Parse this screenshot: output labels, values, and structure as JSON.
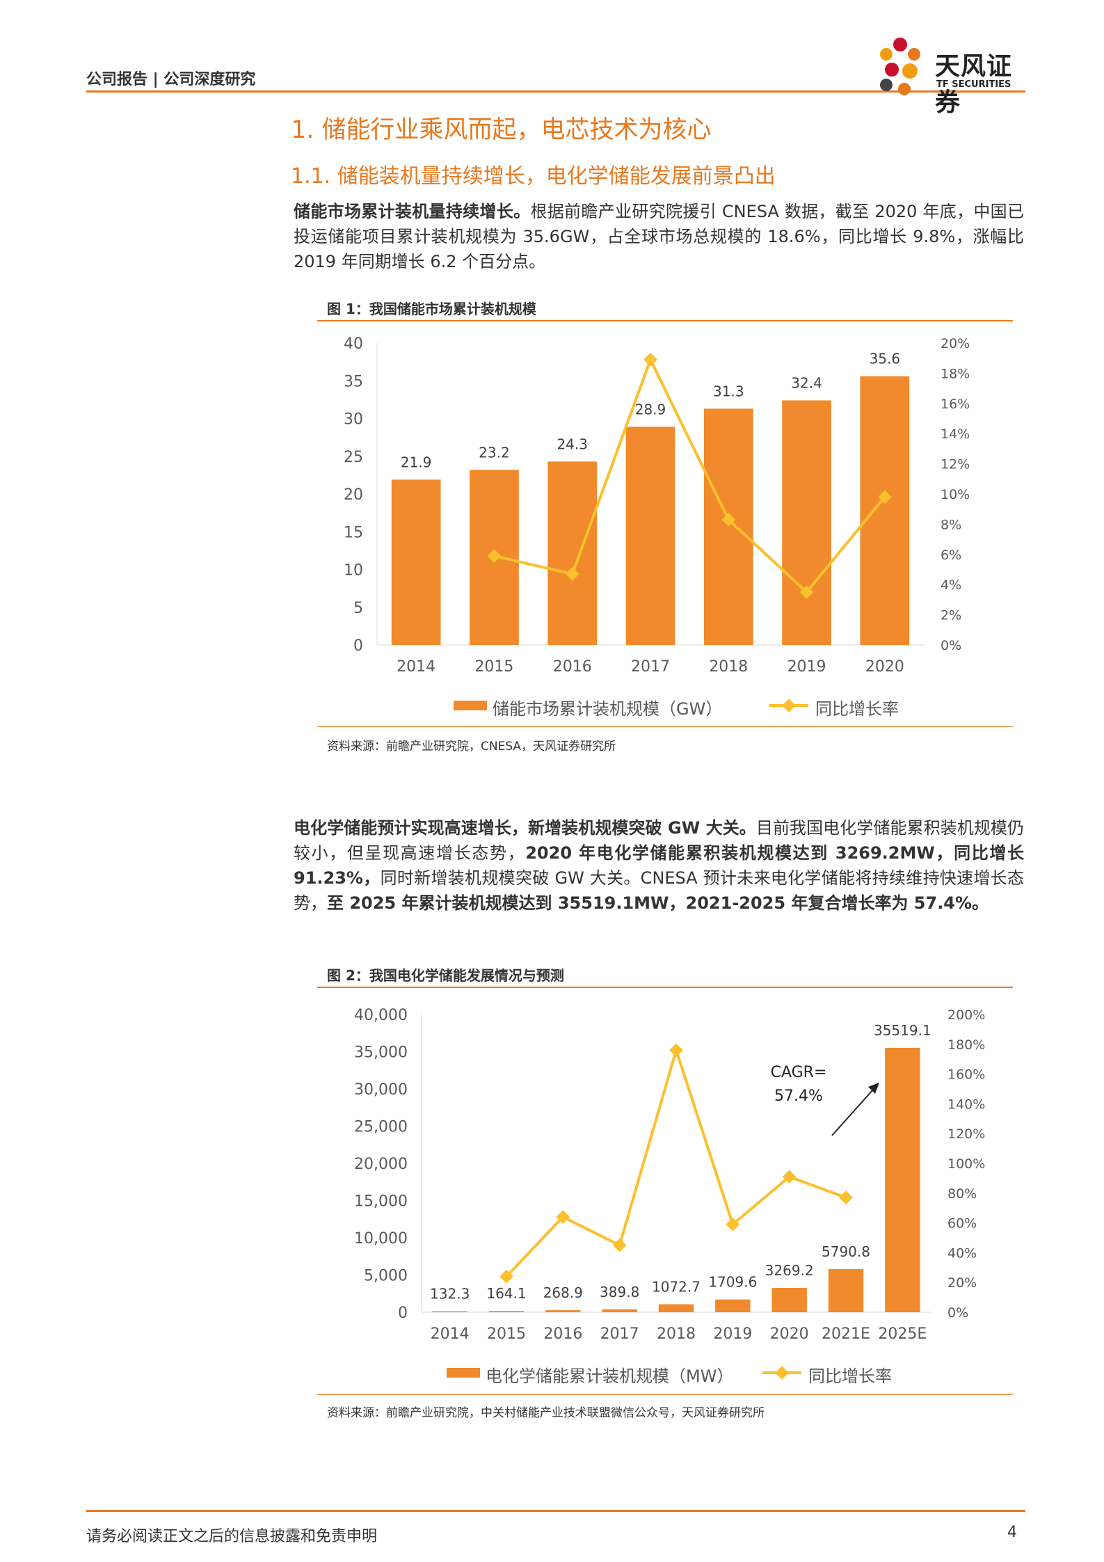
{
  "header": {
    "breadcrumb": "公司报告 | 公司深度研究",
    "logo_name": "天风证券",
    "logo_sub": "TF SECURITIES"
  },
  "section": {
    "h1": "1. 储能行业乘风而起，电芯技术为核心",
    "h2": "1.1. 储能装机量持续增长，电化学储能发展前景凸出"
  },
  "para1": {
    "bold": "储能市场累计装机量持续增长。",
    "text": "根据前瞻产业研究院援引 CNESA 数据，截至 2020 年底，中国已投运储能项目累计装机规模为 35.6GW，占全球市场总规模的 18.6%，同比增长 9.8%，涨幅比 2019 年同期增长 6.2 个百分点。"
  },
  "para2": {
    "b1": "电化学储能预计实现高速增长，新增装机规模突破 GW 大关。",
    "t1": "目前我国电化学储能累积装机规模仍较小，但呈现高速增长态势，",
    "b2": "2020 年电化学储能累积装机规模达到 3269.2MW，同比增长 91.23%，",
    "t2": "同时新增装机规模突破 GW 大关。CNESA 预计未来电化学储能将持续维持快速增长态势，",
    "b3": "至 2025 年累计装机规模达到 35519.1MW，2021-2025 年复合增长率为 57.4%。"
  },
  "figure1": {
    "title": "图 1：我国储能市场累计装机规模",
    "source": "资料来源：前瞻产业研究院，CNESA，天风证券研究所"
  },
  "figure2": {
    "title": "图 2：我国电化学储能发展情况与预测",
    "source": "资料来源：前瞻产业研究院，中关村储能产业技术联盟微信公众号，天风证券研究所"
  },
  "footer": {
    "disclaimer": "请务必阅读正文之后的信息披露和免责申明",
    "page": "4"
  },
  "colors": {
    "accent": "#e8781e",
    "bar": "#f08a2c",
    "line": "#fbc02d"
  },
  "chart_data": [
    {
      "type": "bar",
      "categories": [
        "2014",
        "2015",
        "2016",
        "2017",
        "2018",
        "2019",
        "2020"
      ],
      "series": [
        {
          "name": "储能市场累计装机规模（GW）",
          "type": "bar",
          "axis": "left",
          "values": [
            21.9,
            23.2,
            24.3,
            28.9,
            31.3,
            32.4,
            35.6
          ],
          "labels": [
            "21.9",
            "23.2",
            "24.3",
            "28.9",
            "31.3",
            "32.4",
            "35.6"
          ]
        },
        {
          "name": "同比增长率",
          "type": "line",
          "axis": "right",
          "values": [
            null,
            5.9,
            4.7,
            18.9,
            8.3,
            3.5,
            9.8
          ]
        }
      ],
      "ylim_left": [
        0,
        40
      ],
      "yticks_left": [
        "0",
        "5",
        "10",
        "15",
        "20",
        "25",
        "30",
        "35",
        "40"
      ],
      "ylim_right": [
        0,
        20
      ],
      "yticks_right": [
        "0%",
        "2%",
        "4%",
        "6%",
        "8%",
        "10%",
        "12%",
        "14%",
        "16%",
        "18%",
        "20%"
      ],
      "legend_position": "bottom",
      "grid": false
    },
    {
      "type": "bar",
      "categories": [
        "2014",
        "2015",
        "2016",
        "2017",
        "2018",
        "2019",
        "2020",
        "2021E",
        "2025E"
      ],
      "series": [
        {
          "name": "电化学储能累计装机规模（MW）",
          "type": "bar",
          "axis": "left",
          "values": [
            132.3,
            164.1,
            268.9,
            389.8,
            1072.7,
            1709.6,
            3269.2,
            5790.8,
            35519.1
          ],
          "labels": [
            "132.3",
            "164.1",
            "268.9",
            "389.8",
            "1072.7",
            "1709.6",
            "3269.2",
            "5790.8",
            "35519.1"
          ]
        },
        {
          "name": "同比增长率",
          "type": "line",
          "axis": "right",
          "values": [
            null,
            24,
            64,
            45,
            176,
            59,
            91,
            77,
            null
          ]
        }
      ],
      "ylim_left": [
        0,
        40000
      ],
      "yticks_left": [
        "0",
        "5,000",
        "10,000",
        "15,000",
        "20,000",
        "25,000",
        "30,000",
        "35,000",
        "40,000"
      ],
      "ylim_right": [
        0,
        200
      ],
      "yticks_right": [
        "0%",
        "20%",
        "40%",
        "60%",
        "80%",
        "100%",
        "120%",
        "140%",
        "160%",
        "180%",
        "200%"
      ],
      "annotation": "CAGR=\n57.4%",
      "legend_position": "bottom",
      "grid": false
    }
  ]
}
